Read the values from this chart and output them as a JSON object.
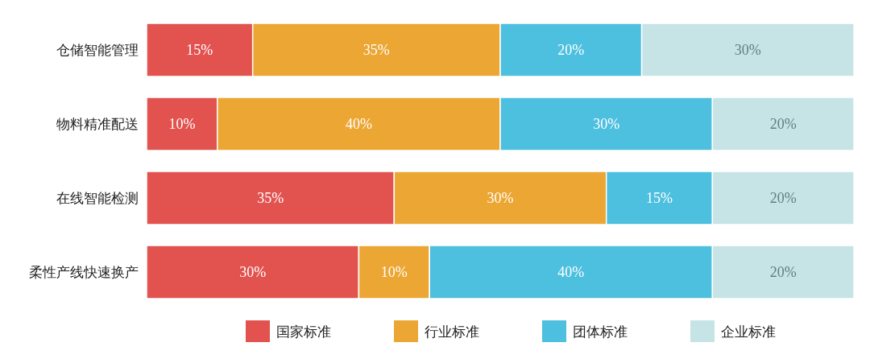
{
  "chart_data": {
    "type": "bar",
    "orientation": "horizontal",
    "stacked": true,
    "legend": "bottom",
    "categories": [
      "仓储智能管理",
      "物料精准配送",
      "在线智能检测",
      "柔性产线快速换产"
    ],
    "series": [
      {
        "name": "国家标准",
        "color": "#e25350",
        "values": [
          15,
          10,
          35,
          30
        ],
        "value_labels": [
          "15%",
          "10%",
          "35%",
          "30%"
        ]
      },
      {
        "name": "行业标准",
        "color": "#eca634",
        "values": [
          35,
          40,
          30,
          10
        ],
        "value_labels": [
          "35%",
          "40%",
          "30%",
          "10%"
        ]
      },
      {
        "name": "团体标准",
        "color": "#4dbfdf",
        "values": [
          20,
          30,
          15,
          40
        ],
        "value_labels": [
          "20%",
          "30%",
          "15%",
          "40%"
        ]
      },
      {
        "name": "企业标准",
        "color": "#c6e4e6",
        "values": [
          30,
          20,
          20,
          20
        ],
        "value_labels": [
          "30%",
          "20%",
          "20%",
          "20%"
        ]
      }
    ]
  }
}
